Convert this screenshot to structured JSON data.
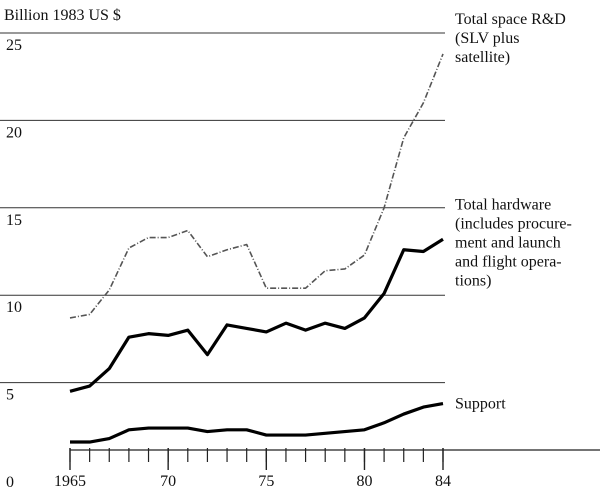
{
  "chart_data": {
    "type": "line",
    "y_label": "Billion 1983 US $",
    "x": [
      1965,
      1966,
      1967,
      1968,
      1969,
      1970,
      1971,
      1972,
      1973,
      1974,
      1975,
      1976,
      1977,
      1978,
      1979,
      1980,
      1981,
      1982,
      1983,
      1984
    ],
    "xlim": [
      1965,
      1984
    ],
    "xticks": [
      {
        "value": 1965,
        "label": "1965"
      },
      {
        "value": 1970,
        "label": "70"
      },
      {
        "value": 1975,
        "label": "75"
      },
      {
        "value": 1980,
        "label": "80"
      },
      {
        "value": 1984,
        "label": "84"
      }
    ],
    "ylim": [
      0,
      25
    ],
    "yticks": [
      0,
      5,
      10,
      15,
      20,
      25
    ],
    "grid": true,
    "series": [
      {
        "label": [
          "Total space R&D",
          "(SLV plus",
          "satellite)"
        ],
        "color": "#555555",
        "dashed": true,
        "values": [
          8.7,
          8.9,
          10.3,
          12.7,
          13.3,
          13.3,
          13.7,
          12.2,
          12.6,
          12.9,
          10.4,
          10.4,
          10.4,
          11.4,
          11.5,
          12.3,
          15.0,
          19.0,
          21.0,
          23.8
        ]
      },
      {
        "label": [
          "Total hardware",
          "(includes procure-",
          "ment and launch",
          "and flight opera-",
          "tions)"
        ],
        "color": "#000000",
        "dashed": false,
        "values": [
          4.5,
          4.8,
          5.8,
          7.6,
          7.8,
          7.7,
          8.0,
          6.6,
          8.3,
          8.1,
          7.9,
          8.4,
          8.0,
          8.4,
          8.1,
          8.7,
          10.1,
          12.6,
          12.5,
          13.2
        ]
      },
      {
        "label": [
          "Support"
        ],
        "color": "#000000",
        "dashed": false,
        "values": [
          1.6,
          1.6,
          1.8,
          2.3,
          2.4,
          2.4,
          2.4,
          2.2,
          2.3,
          2.3,
          2.0,
          2.0,
          2.0,
          2.1,
          2.2,
          2.3,
          2.7,
          3.2,
          3.6,
          3.8
        ]
      }
    ]
  }
}
